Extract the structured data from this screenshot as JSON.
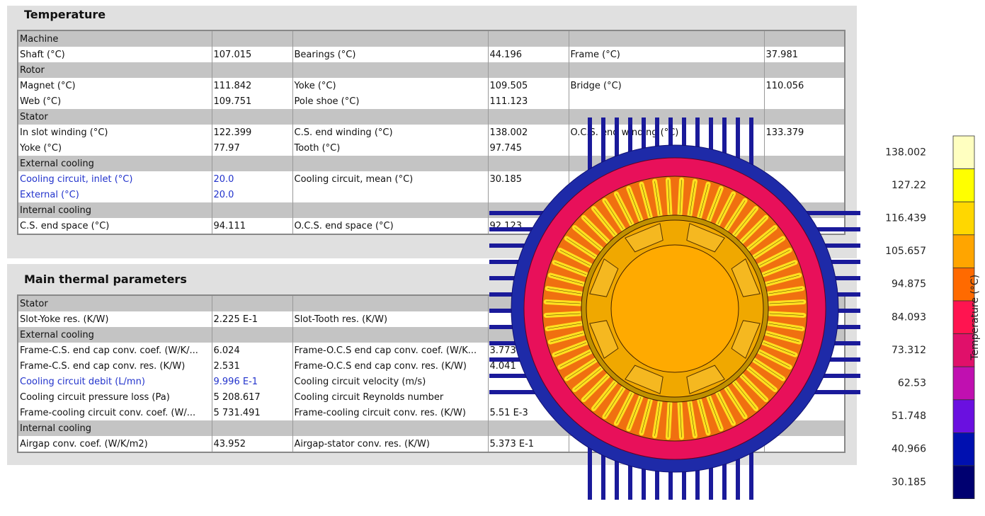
{
  "sections": [
    {
      "title": "Temperature",
      "rows": [
        {
          "group": "Machine"
        },
        {
          "cells": [
            "Shaft (°C)",
            "107.015",
            "Bearings (°C)",
            "44.196",
            "Frame (°C)",
            "37.981"
          ]
        },
        {
          "group": "Rotor"
        },
        {
          "cells": [
            "Magnet (°C)",
            "111.842",
            "Yoke (°C)",
            "109.505",
            "Bridge (°C)",
            "110.056"
          ]
        },
        {
          "cells": [
            "Web (°C)",
            "109.751",
            "Pole shoe (°C)",
            "111.123",
            null,
            null
          ]
        },
        {
          "group": "Stator"
        },
        {
          "cells": [
            "In slot winding (°C)",
            "122.399",
            "C.S. end winding (°C)",
            "138.002",
            "O.C.S. end winding (°C)",
            "133.379"
          ]
        },
        {
          "cells": [
            "Yoke (°C)",
            "77.97",
            "Tooth (°C)",
            "97.745",
            null,
            null
          ]
        },
        {
          "group": "External cooling"
        },
        {
          "cells": [
            "Cooling circuit, inlet (°C)",
            "20.0",
            "Cooling circuit, mean (°C)",
            "30.185",
            null,
            null
          ]
        },
        {
          "cells": [
            "External (°C)",
            "20.0",
            null,
            null,
            null,
            null
          ]
        },
        {
          "group": "Internal cooling"
        },
        {
          "cells": [
            "C.S. end space (°C)",
            "94.111",
            "O.C.S. end space (°C)",
            "92.123",
            null,
            null
          ]
        }
      ]
    },
    {
      "title": "Main thermal parameters",
      "rows": [
        {
          "group": "Stator"
        },
        {
          "cells": [
            "Slot-Yoke res. (K/W)",
            "2.225 E-1",
            "Slot-Tooth res. (K/W)",
            null,
            null,
            null
          ]
        },
        {
          "group": "External cooling"
        },
        {
          "cells": [
            "Frame-C.S. end cap conv. coef. (W/K/...",
            "6.024",
            "Frame-O.C.S end cap conv. coef. (W/K...",
            "3.773",
            null,
            null
          ]
        },
        {
          "cells": [
            "Frame-C.S. end cap conv. res. (K/W)",
            "2.531",
            "Frame-O.C.S end cap conv. res. (K/W)",
            "4.041",
            null,
            null
          ]
        },
        {
          "cells": [
            "Cooling circuit debit (L/mn)",
            "9.996 E-1",
            "Cooling circuit velocity (m/s)",
            null,
            null,
            null
          ]
        },
        {
          "cells": [
            "Cooling circuit pressure loss (Pa)",
            "5 208.617",
            "Cooling circuit Reynolds number",
            null,
            null,
            null
          ]
        },
        {
          "cells": [
            "Frame-cooling circuit conv. coef. (W/...",
            "5 731.491",
            "Frame-cooling circuit conv. res. (K/W)",
            "5.51 E-3",
            null,
            null
          ]
        },
        {
          "group": "Internal cooling"
        },
        {
          "cells": [
            "Airgap conv. coef. (W/K/m2)",
            "43.952",
            "Airgap-stator conv. res. (K/W)",
            "5.373 E-1",
            null,
            null
          ]
        }
      ]
    }
  ],
  "legend": {
    "title": "Temperature (°C)",
    "labels": [
      "138.002",
      "127.22",
      "116.439",
      "105.657",
      "94.875",
      "84.093",
      "73.312",
      "62.53",
      "51.748",
      "40.966",
      "30.185"
    ],
    "colors": [
      "#ffffc0",
      "#ffff00",
      "#ffd700",
      "#ffa500",
      "#ff6a00",
      "#ff1450",
      "#e0106a",
      "#c010b0",
      "#6a10e0",
      "#0010b0",
      "#000070"
    ]
  }
}
